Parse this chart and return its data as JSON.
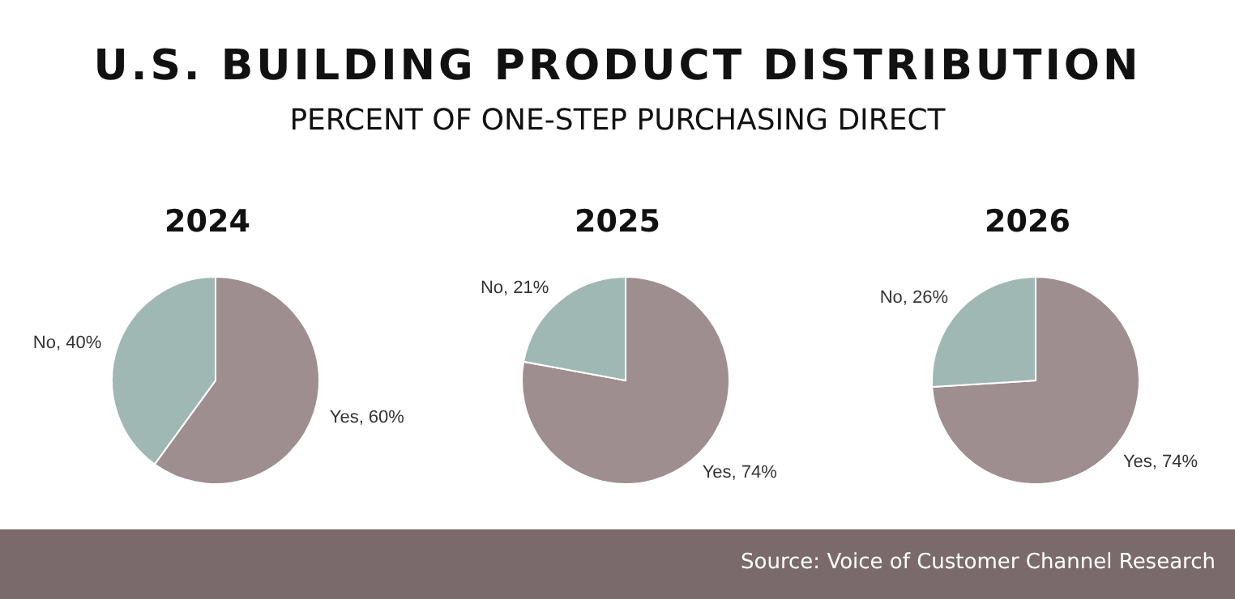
{
  "chart_data": [
    {
      "type": "other",
      "title": "U.S. BUILDING PRODUCT DISTRIBUTION",
      "subtitle": "PERCENT OF ONE-STEP PURCHASING DIRECT",
      "annotations": [
        "Source: Voice of Customer Channel Research"
      ]
    },
    {
      "type": "pie",
      "title": "2024",
      "categories": [
        "Yes",
        "No"
      ],
      "values": [
        60,
        40
      ],
      "value_labels": [
        "60%",
        "40%"
      ],
      "colors": [
        "#9e8e8f",
        "#9fb8b4"
      ]
    },
    {
      "type": "pie",
      "title": "2025",
      "categories": [
        "Yes",
        "No"
      ],
      "values": [
        74,
        21
      ],
      "value_labels": [
        "74%",
        "21%"
      ],
      "colors": [
        "#9e8e8f",
        "#9fb8b4"
      ]
    },
    {
      "type": "pie",
      "title": "2026",
      "categories": [
        "Yes",
        "No"
      ],
      "values": [
        74,
        26
      ],
      "value_labels": [
        "74%",
        "26%"
      ],
      "colors": [
        "#9e8e8f",
        "#9fb8b4"
      ]
    }
  ]
}
